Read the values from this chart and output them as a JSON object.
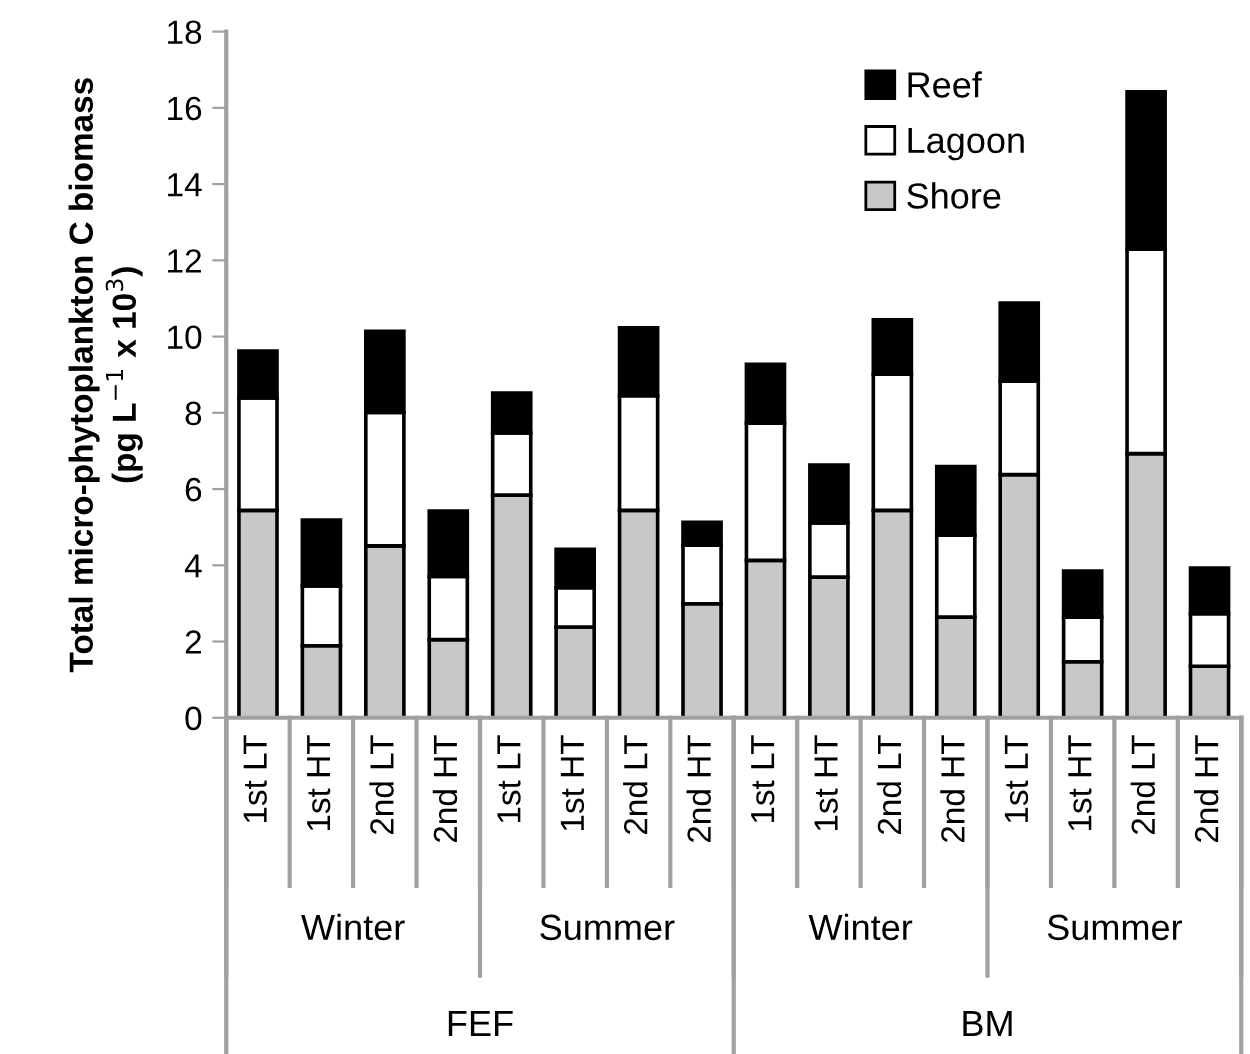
{
  "chart_data": {
    "type": "bar",
    "stacked": true,
    "ylabel": "Total micro-phytoplankton C biomass\n(pg L$^{−1}$ x 10$^{3}$)",
    "categories": [
      "1st LT",
      "1st HT",
      "2nd LT",
      "2nd HT",
      "1st LT",
      "1st HT",
      "2nd LT",
      "2nd HT",
      "1st LT",
      "1st HT",
      "2nd LT",
      "2nd HT",
      "1st LT",
      "1st HT",
      "2nd LT",
      "2nd HT"
    ],
    "series": [
      {
        "name": "Shore",
        "color": "#c8c8c8",
        "values": [
          5.44,
          1.89,
          4.51,
          2.05,
          5.84,
          2.38,
          5.44,
          2.99,
          4.13,
          3.69,
          5.44,
          2.64,
          6.38,
          1.47,
          6.93,
          1.35
        ]
      },
      {
        "name": "Lagoon",
        "color": "#ffffff",
        "values": [
          2.95,
          1.57,
          3.5,
          1.66,
          1.63,
          1.03,
          3.01,
          1.54,
          3.6,
          1.42,
          3.57,
          2.15,
          2.45,
          1.17,
          5.36,
          1.38
        ]
      },
      {
        "name": "Reef",
        "color": "#000000",
        "values": [
          1.23,
          1.73,
          2.13,
          1.71,
          1.05,
          1.01,
          1.78,
          0.6,
          1.54,
          1.52,
          1.43,
          1.8,
          2.05,
          1.21,
          4.13,
          1.2
        ]
      }
    ],
    "annotations": [
      "Winter",
      "Summer",
      "Winter",
      "Summer",
      "FEF",
      "BM"
    ],
    "ylim": [
      0,
      18
    ],
    "yticks": [
      0,
      2,
      4,
      6,
      8,
      10,
      12,
      14,
      16,
      18
    ],
    "grid": false,
    "legend": "top right"
  }
}
